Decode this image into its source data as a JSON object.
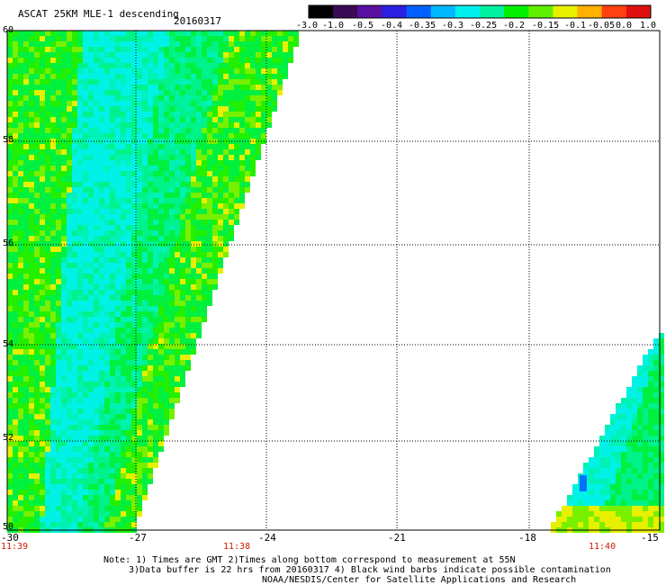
{
  "header": {
    "title": "ASCAT 25KM MLE-1 descending",
    "date": "20160317"
  },
  "colorbar": {
    "labels": [
      "-3.0",
      "-1.0",
      "-0.5",
      "-0.4",
      "-0.35",
      "-0.3",
      "-0.25",
      "-0.2",
      "-0.15",
      "-0.1",
      "-0.05",
      "0.0",
      "1.0"
    ],
    "colors": [
      "#000000",
      "#3a0a55",
      "#5a10a0",
      "#2a1fe0",
      "#0060ff",
      "#00b8ff",
      "#00f0f0",
      "#00f0a0",
      "#00f000",
      "#60f000",
      "#e8f000",
      "#ffb000",
      "#ff4010",
      "#e01010"
    ]
  },
  "map": {
    "lon_range": [
      -30,
      -15
    ],
    "lat_range": [
      50,
      60
    ],
    "lon_ticks": [
      "-30",
      "-27",
      "-24",
      "-21",
      "-18",
      "-15"
    ],
    "lat_ticks": [
      "60",
      "58",
      "56",
      "54",
      "52",
      "50"
    ],
    "time_labels": [
      "11:39",
      "11:38",
      "11:40"
    ],
    "time_label_lons": [
      -30,
      -25.5,
      -16
    ]
  },
  "notes": {
    "line1": "Note: 1) Times are GMT 2)Times along bottom correspond to measurement at 55N",
    "line2": "3)Data buffer is 22 hrs from 20160317 4) Black wind barbs indicate possible contamination",
    "line3": "NOAA/NESDIS/Center for Satellite Applications and Research"
  }
}
